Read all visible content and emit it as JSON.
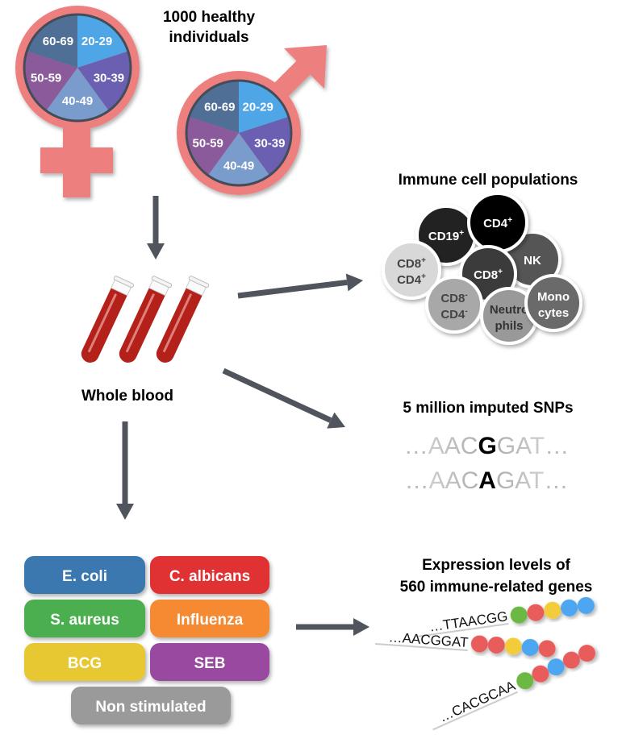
{
  "cohort": {
    "title_line1": "1000 healthy",
    "title_line2": "individuals",
    "age_groups": [
      "20-29",
      "30-39",
      "40-49",
      "50-59",
      "60-69"
    ],
    "age_colors": [
      "#4ea6e6",
      "#6a5fb0",
      "#7a9ccc",
      "#8a5a9a",
      "#4f6f96"
    ],
    "symbol_color": "#ee7f7f"
  },
  "blood": {
    "label": "Whole blood",
    "tube_color": "#b4201a"
  },
  "arrow_color": "#50545c",
  "immune": {
    "title": "Immune cell populations",
    "cells": [
      {
        "l1": "CD19",
        "sup1": "+",
        "l2": "",
        "sup2": "",
        "fill": "#222222",
        "text": "#ffffff"
      },
      {
        "l1": "NK",
        "sup1": "",
        "l2": "",
        "sup2": "",
        "fill": "#555555",
        "text": "#ffffff"
      },
      {
        "l1": "CD4",
        "sup1": "+",
        "l2": "",
        "sup2": "",
        "fill": "#000000",
        "text": "#ffffff"
      },
      {
        "l1": "CD8",
        "sup1": "+",
        "l2": "",
        "sup2": "",
        "fill": "#3a3a3a",
        "text": "#ffffff"
      },
      {
        "l1": "CD8",
        "sup1": "+",
        "l2": "CD4",
        "sup2": "+",
        "fill": "#d8d8d8",
        "text": "#444444"
      },
      {
        "l1": "CD8",
        "sup1": "-",
        "l2": "CD4",
        "sup2": "-",
        "fill": "#a8a8a8",
        "text": "#444444"
      },
      {
        "l1": "Neutro",
        "sup1": "",
        "l2": "phils",
        "sup2": "",
        "fill": "#999999",
        "text": "#333333"
      },
      {
        "l1": "Mono",
        "sup1": "",
        "l2": "cytes",
        "sup2": "",
        "fill": "#6a6a6a",
        "text": "#ffffff"
      }
    ]
  },
  "snps": {
    "title": "5 million imputed SNPs",
    "rows": [
      {
        "prefix": "…",
        "left": "AAC",
        "allele": "G",
        "right": "GAT",
        "suffix": "…"
      },
      {
        "prefix": "…",
        "left": "AAC",
        "allele": "A",
        "right": "GAT",
        "suffix": "…"
      }
    ]
  },
  "stimuli": [
    {
      "label": "E. coli",
      "color": "#3a78b0"
    },
    {
      "label": "C. albicans",
      "color": "#e03030"
    },
    {
      "label": "S. aureus",
      "color": "#4caf50"
    },
    {
      "label": "Influenza",
      "color": "#f58a30"
    },
    {
      "label": "BCG",
      "color": "#e8c830"
    },
    {
      "label": "SEB",
      "color": "#9a4aa0"
    },
    {
      "label": "Non stimulated",
      "color": "#9a9a9a"
    }
  ],
  "expression": {
    "title_line1": "Expression levels of",
    "title_line2": "560 immune-related genes",
    "reads": [
      {
        "seq": "…TTAACGG",
        "beads": [
          "#6cb845",
          "#e85c5c",
          "#f2cc3a",
          "#4ea6f0",
          "#4ea6f0"
        ]
      },
      {
        "seq": "…AACGGAT",
        "beads": [
          "#e85c5c",
          "#e85c5c",
          "#f2cc3a",
          "#4ea6f0",
          "#e85c5c"
        ]
      },
      {
        "seq": "…CACGCAA",
        "beads": [
          "#6cb845",
          "#e85c5c",
          "#4ea6f0",
          "#e85c5c",
          "#e85c5c"
        ]
      }
    ]
  }
}
